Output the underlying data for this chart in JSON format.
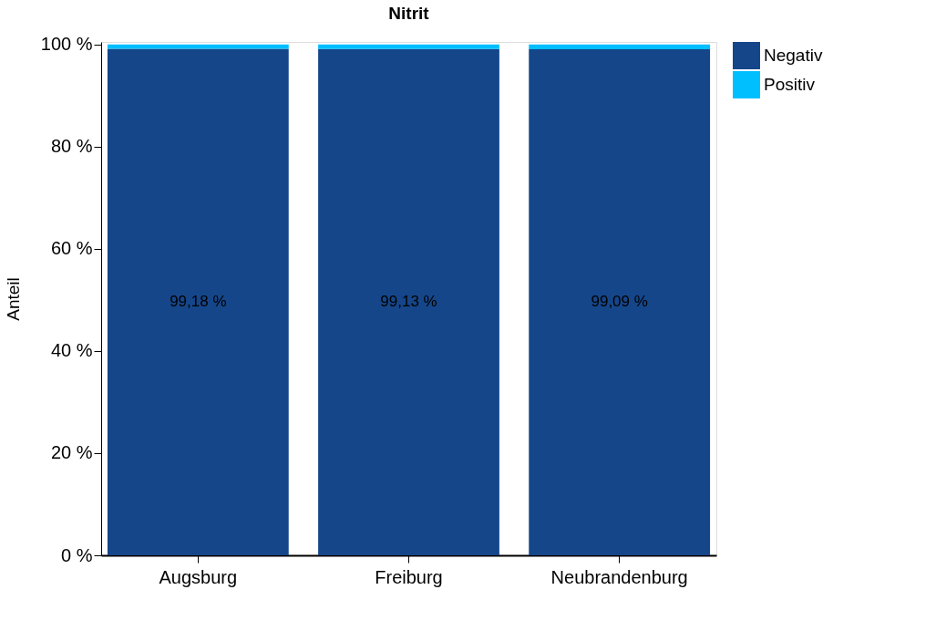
{
  "chart_data": {
    "type": "bar",
    "title": "Nitrit",
    "ylabel": "Anteil",
    "stacked": true,
    "categories": [
      "Augsburg",
      "Freiburg",
      "Neubrandenburg"
    ],
    "series": [
      {
        "name": "Negativ",
        "color": "#15468a",
        "values": [
          99.18,
          99.13,
          99.09
        ],
        "value_labels": [
          "99,18 %",
          "99,13 %",
          "99,09 %"
        ]
      },
      {
        "name": "Positiv",
        "color": "#00bfff",
        "values": [
          0.82,
          0.87,
          0.91
        ]
      }
    ],
    "ylim": [
      0,
      100.5
    ],
    "yticks": [
      {
        "value": 0,
        "label": "0 %"
      },
      {
        "value": 20,
        "label": "20 %"
      },
      {
        "value": 40,
        "label": "40 %"
      },
      {
        "value": 60,
        "label": "60 %"
      },
      {
        "value": 80,
        "label": "80 %"
      },
      {
        "value": 100,
        "label": "100 %"
      }
    ],
    "grid": false,
    "legend": "right"
  }
}
